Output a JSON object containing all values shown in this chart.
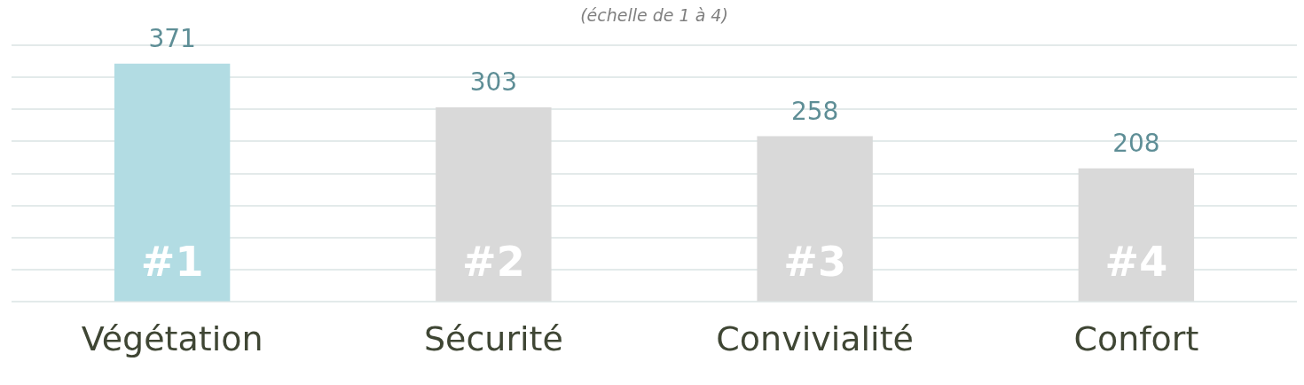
{
  "chart_data": {
    "type": "bar",
    "subtitle": "(échelle de 1 à 4)",
    "categories": [
      "Végétation",
      "Sécurité",
      "Convivialité",
      "Confort"
    ],
    "values": [
      371,
      303,
      258,
      208
    ],
    "colors": [
      "#b2dce3",
      "#d9d9d9",
      "#d9d9d9",
      "#d9d9d9"
    ],
    "ylim": [
      0,
      400
    ],
    "yticks": [
      {
        "value": 0,
        "label": null
      },
      {
        "value": 50,
        "label": null
      },
      {
        "value": 100,
        "label": null
      },
      {
        "value": 150,
        "label": null
      },
      {
        "value": 200,
        "label": null
      },
      {
        "value": 250,
        "label": null
      },
      {
        "value": 300,
        "label": null
      },
      {
        "value": 350,
        "label": null
      },
      {
        "value": 400,
        "label": null
      }
    ],
    "grid": "y",
    "tick_labels": "x",
    "data_labels": true,
    "annotations": [
      "#1",
      "#2",
      "#3",
      "#4"
    ]
  }
}
